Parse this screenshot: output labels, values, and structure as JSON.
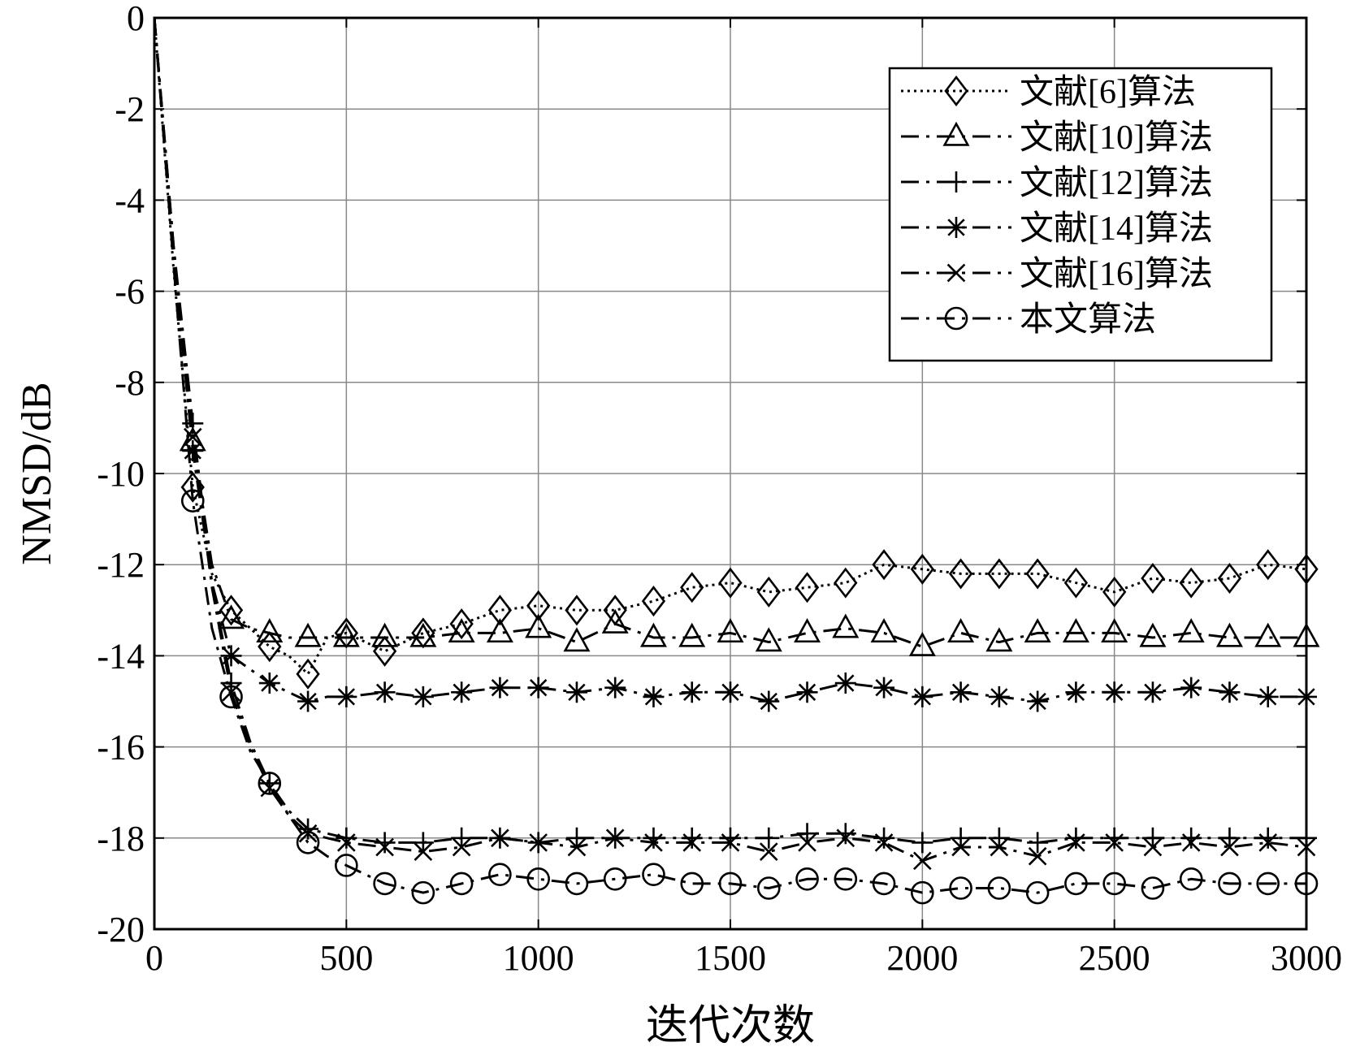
{
  "chart_data": {
    "type": "line",
    "xlabel": "迭代次数",
    "ylabel": "NMSD/dB",
    "xlim": [
      0,
      3000
    ],
    "ylim": [
      -20,
      0
    ],
    "xticks": [
      0,
      500,
      1000,
      1500,
      2000,
      2500,
      3000
    ],
    "yticks": [
      0,
      -2,
      -4,
      -6,
      -8,
      -10,
      -12,
      -14,
      -16,
      -18,
      -20
    ],
    "grid": true,
    "legend_position": "top-right",
    "series": [
      {
        "name": "文献[6]算法",
        "marker": "diamond",
        "dash": "dotted",
        "x": [
          0,
          50,
          100,
          150,
          200,
          250,
          300,
          350,
          400,
          450,
          500,
          600,
          700,
          800,
          900,
          1000,
          1100,
          1200,
          1300,
          1400,
          1500,
          1600,
          1700,
          1800,
          1900,
          2000,
          2100,
          2200,
          2300,
          2400,
          2500,
          2600,
          2700,
          2800,
          2900,
          3000
        ],
        "y": [
          0,
          -5.5,
          -10.3,
          -12.2,
          -13.0,
          -13.4,
          -13.8,
          -14.0,
          -14.4,
          -13.6,
          -13.5,
          -13.9,
          -13.5,
          -13.3,
          -13.0,
          -12.9,
          -13.0,
          -13.0,
          -12.8,
          -12.5,
          -12.4,
          -12.6,
          -12.5,
          -12.4,
          -12.0,
          -12.1,
          -12.2,
          -12.2,
          -12.2,
          -12.4,
          -12.6,
          -12.3,
          -12.4,
          -12.3,
          -12.0,
          -12.1
        ]
      },
      {
        "name": "文献[10]算法",
        "marker": "triangle",
        "dash": "dashdot",
        "x": [
          0,
          50,
          100,
          150,
          200,
          250,
          300,
          350,
          400,
          450,
          500,
          600,
          700,
          800,
          900,
          1000,
          1100,
          1200,
          1300,
          1400,
          1500,
          1600,
          1700,
          1800,
          1900,
          2000,
          2100,
          2200,
          2300,
          2400,
          2500,
          2600,
          2700,
          2800,
          2900,
          3000
        ],
        "y": [
          0,
          -5.0,
          -9.3,
          -12.0,
          -13.2,
          -13.4,
          -13.5,
          -13.6,
          -13.6,
          -13.6,
          -13.6,
          -13.6,
          -13.6,
          -13.5,
          -13.5,
          -13.4,
          -13.7,
          -13.3,
          -13.6,
          -13.6,
          -13.5,
          -13.7,
          -13.5,
          -13.4,
          -13.5,
          -13.8,
          -13.5,
          -13.7,
          -13.5,
          -13.5,
          -13.5,
          -13.6,
          -13.5,
          -13.6,
          -13.6,
          -13.6
        ]
      },
      {
        "name": "文献[12]算法",
        "marker": "plus",
        "dash": "dashdot",
        "x": [
          0,
          50,
          100,
          150,
          200,
          250,
          300,
          350,
          400,
          450,
          500,
          600,
          700,
          800,
          900,
          1000,
          1100,
          1200,
          1300,
          1400,
          1500,
          1600,
          1700,
          1800,
          1900,
          2000,
          2100,
          2200,
          2300,
          2400,
          2500,
          2600,
          2700,
          2800,
          2900,
          3000
        ],
        "y": [
          0,
          -5.0,
          -8.9,
          -12.4,
          -14.6,
          -15.9,
          -16.8,
          -17.4,
          -17.8,
          -17.9,
          -18.0,
          -18.1,
          -18.1,
          -18.0,
          -18.0,
          -18.1,
          -18.0,
          -18.0,
          -18.0,
          -18.0,
          -18.0,
          -18.0,
          -17.9,
          -17.9,
          -18.0,
          -18.1,
          -18.0,
          -18.0,
          -18.1,
          -18.0,
          -18.0,
          -18.0,
          -18.0,
          -18.0,
          -18.0,
          -18.0
        ]
      },
      {
        "name": "文献[14]算法",
        "marker": "asterisk",
        "dash": "dashdot",
        "x": [
          0,
          50,
          100,
          150,
          200,
          250,
          300,
          350,
          400,
          450,
          500,
          600,
          700,
          800,
          900,
          1000,
          1100,
          1200,
          1300,
          1400,
          1500,
          1600,
          1700,
          1800,
          1900,
          2000,
          2100,
          2200,
          2300,
          2400,
          2500,
          2600,
          2700,
          2800,
          2900,
          3000
        ],
        "y": [
          0,
          -5.2,
          -9.5,
          -12.4,
          -14.0,
          -14.3,
          -14.6,
          -14.8,
          -15.0,
          -14.9,
          -14.9,
          -14.8,
          -14.9,
          -14.8,
          -14.7,
          -14.7,
          -14.8,
          -14.7,
          -14.9,
          -14.8,
          -14.8,
          -15.0,
          -14.8,
          -14.6,
          -14.7,
          -14.9,
          -14.8,
          -14.9,
          -15.0,
          -14.8,
          -14.8,
          -14.8,
          -14.7,
          -14.8,
          -14.9,
          -14.9
        ]
      },
      {
        "name": "文献[16]算法",
        "marker": "x",
        "dash": "dashdot",
        "x": [
          0,
          50,
          100,
          150,
          200,
          250,
          300,
          350,
          400,
          450,
          500,
          600,
          700,
          800,
          900,
          1000,
          1100,
          1200,
          1300,
          1400,
          1500,
          1600,
          1700,
          1800,
          1900,
          2000,
          2100,
          2200,
          2300,
          2400,
          2500,
          2600,
          2700,
          2800,
          2900,
          3000
        ],
        "y": [
          0,
          -5.1,
          -9.2,
          -12.5,
          -14.8,
          -16.0,
          -16.9,
          -17.5,
          -17.9,
          -18.0,
          -18.1,
          -18.2,
          -18.3,
          -18.2,
          -18.0,
          -18.1,
          -18.2,
          -18.0,
          -18.1,
          -18.1,
          -18.1,
          -18.3,
          -18.1,
          -18.0,
          -18.1,
          -18.5,
          -18.2,
          -18.2,
          -18.4,
          -18.1,
          -18.1,
          -18.2,
          -18.1,
          -18.2,
          -18.1,
          -18.2
        ]
      },
      {
        "name": "本文算法",
        "marker": "circle",
        "dash": "dashdot",
        "x": [
          0,
          50,
          100,
          150,
          200,
          250,
          300,
          350,
          400,
          450,
          500,
          600,
          700,
          800,
          900,
          1000,
          1100,
          1200,
          1300,
          1400,
          1500,
          1600,
          1700,
          1800,
          1900,
          2000,
          2100,
          2200,
          2300,
          2400,
          2500,
          2600,
          2700,
          2800,
          2900,
          3000
        ],
        "y": [
          0,
          -5.4,
          -10.6,
          -13.4,
          -14.9,
          -16.1,
          -16.8,
          -17.5,
          -18.1,
          -18.4,
          -18.6,
          -19.0,
          -19.2,
          -19.0,
          -18.8,
          -18.9,
          -19.0,
          -18.9,
          -18.8,
          -19.0,
          -19.0,
          -19.1,
          -18.9,
          -18.9,
          -19.0,
          -19.2,
          -19.1,
          -19.1,
          -19.2,
          -19.0,
          -19.0,
          -19.1,
          -18.9,
          -19.0,
          -19.0,
          -19.0
        ]
      }
    ]
  }
}
